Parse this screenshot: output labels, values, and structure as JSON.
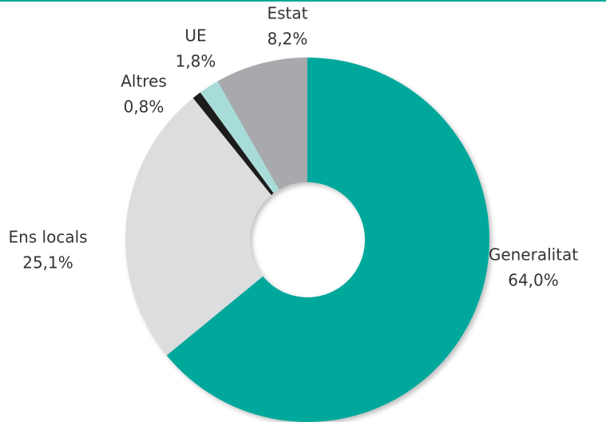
{
  "chart_data": {
    "type": "donut",
    "categories": [
      "Generalitat",
      "Ens locals",
      "Altres",
      "UE",
      "Estat"
    ],
    "values": [
      64.0,
      25.1,
      0.8,
      1.8,
      8.2
    ],
    "value_labels": [
      "64,0%",
      "25,1%",
      "0,8%",
      "1,8%",
      "8,2%"
    ],
    "colors": [
      "#00a89c",
      "#dcdddf",
      "#1a1a1a",
      "#a8dcd9",
      "#a7a9ac"
    ]
  }
}
